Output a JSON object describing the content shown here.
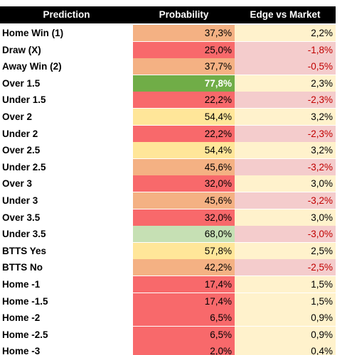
{
  "table": {
    "header": [
      "Prediction",
      "Probability",
      "Edge vs Market"
    ],
    "rows": [
      [
        "Home Win (1)",
        "37,3%",
        "2,2%"
      ],
      [
        "Draw (X)",
        "25,0%",
        "-1,8%"
      ],
      [
        "Away Win (2)",
        "37,7%",
        "-0,5%"
      ],
      [
        "Over 1.5",
        "77,8%",
        "2,3%"
      ],
      [
        "Under 1.5",
        "22,2%",
        "-2,3%"
      ],
      [
        "Over 2",
        "54,4%",
        "3,2%"
      ],
      [
        "Under 2",
        "22,2%",
        "-2,3%"
      ],
      [
        "Over 2.5",
        "54,4%",
        "3,2%"
      ],
      [
        "Under 2.5",
        "45,6%",
        "-3,2%"
      ],
      [
        "Over 3",
        "32,0%",
        "3,0%"
      ],
      [
        "Under 3",
        "45,6%",
        "-3,2%"
      ],
      [
        "Over 3.5",
        "32,0%",
        "3,0%"
      ],
      [
        "Under 3.5",
        "68,0%",
        "-3,0%"
      ],
      [
        "BTTS Yes",
        "57,8%",
        "2,5%"
      ],
      [
        "BTTS No",
        "42,2%",
        "-2,5%"
      ],
      [
        "Home -1",
        "17,4%",
        "1,5%"
      ],
      [
        "Home -1.5",
        "17,4%",
        "1,5%"
      ],
      [
        "Home -2",
        "6,5%",
        "0,9%"
      ],
      [
        "Home -2.5",
        "6,5%",
        "0,9%"
      ],
      [
        "Home -3",
        "2,0%",
        "0,4%"
      ]
    ],
    "probability_colors": [
      "#f4b183",
      "#f8696b",
      "#f4b183",
      "#70ad47",
      "#f8696b",
      "#ffe699",
      "#f8696b",
      "#ffe699",
      "#f4b183",
      "#f8696b",
      "#f4b183",
      "#f8696b",
      "#c6e0b4",
      "#ffe699",
      "#f4b183",
      "#f8696b",
      "#f8696b",
      "#f8696b",
      "#f8696b",
      "#f8696b"
    ],
    "edge_colors": [
      "#fff2cc",
      "#f4cccc",
      "#f4cccc",
      "#fff2cc",
      "#f4cccc",
      "#fff2cc",
      "#f4cccc",
      "#fff2cc",
      "#f4cccc",
      "#fff2cc",
      "#f4cccc",
      "#fff2cc",
      "#f4cccc",
      "#fff2cc",
      "#f4cccc",
      "#fff2cc",
      "#fff2cc",
      "#fff2cc",
      "#fff2cc",
      "#fff2cc"
    ]
  }
}
